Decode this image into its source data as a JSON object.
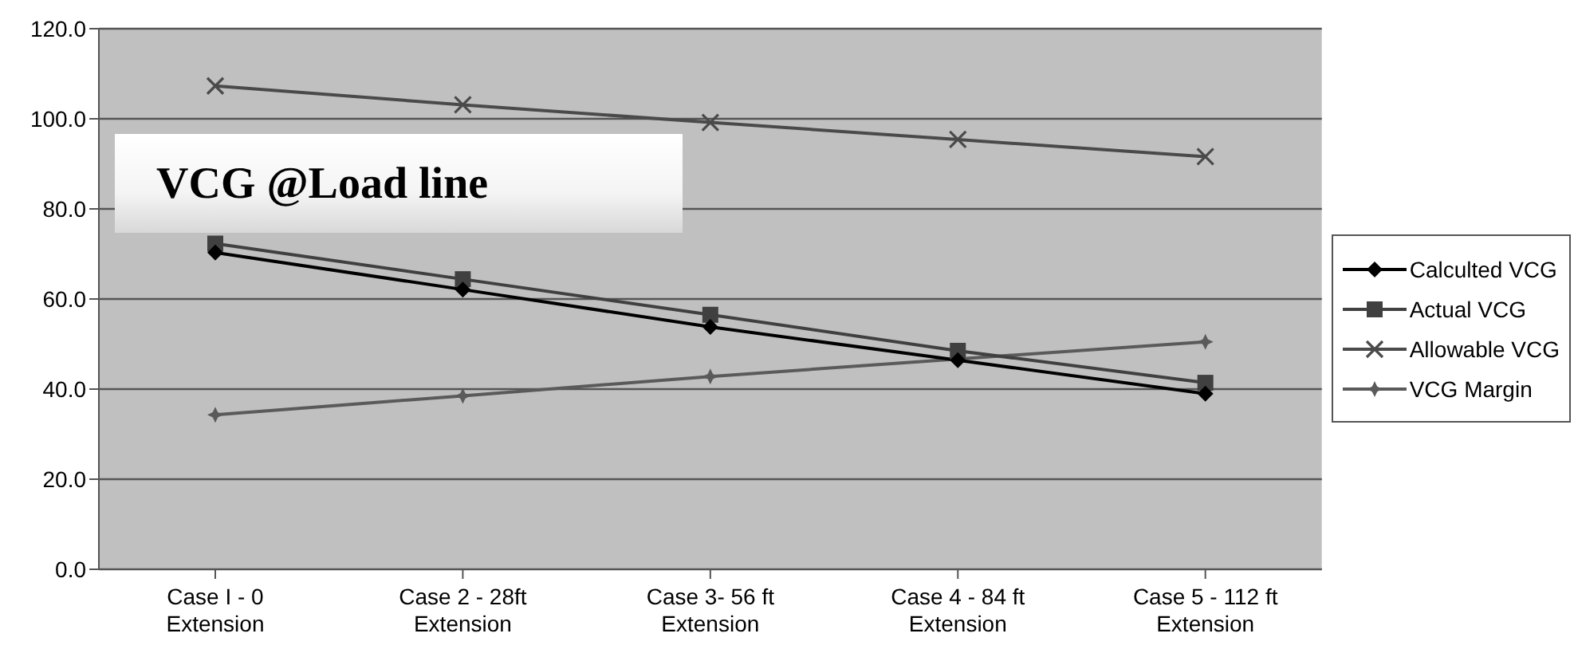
{
  "chart_data": {
    "type": "line",
    "title": "VCG @Load line",
    "categories": [
      "Case I - 0 Extension",
      "Case 2 - 28ft Extension",
      "Case 3- 56 ft Extension",
      "Case 4 - 84 ft Extension",
      "Case 5 - 112 ft Extension"
    ],
    "series": [
      {
        "name": "Calculted VCG",
        "color": "#000000",
        "marker": "diamond",
        "values": [
          70.3,
          62.1,
          53.8,
          46.4,
          39.0
        ]
      },
      {
        "name": "Actual VCG",
        "color": "#404040",
        "marker": "square",
        "values": [
          72.3,
          64.4,
          56.5,
          48.5,
          41.4
        ]
      },
      {
        "name": "Allowable VCG",
        "color": "#4a4a4a",
        "marker": "cross",
        "values": [
          107.3,
          103.1,
          99.2,
          95.4,
          91.6
        ]
      },
      {
        "name": "VCG Margin",
        "color": "#5a5a5a",
        "marker": "star",
        "values": [
          34.3,
          38.5,
          42.8,
          46.7,
          50.5
        ]
      }
    ],
    "ylim": [
      0,
      120
    ],
    "yticks": [
      {
        "value": 0,
        "label": "0.0"
      },
      {
        "value": 20,
        "label": "20.0"
      },
      {
        "value": 40,
        "label": "40.0"
      },
      {
        "value": 60,
        "label": "60.0"
      },
      {
        "value": 80,
        "label": "80.0"
      },
      {
        "value": 100,
        "label": "100.0"
      },
      {
        "value": 120,
        "label": "120.0"
      }
    ],
    "grid": "y",
    "legend": "right",
    "line_style": "solid"
  }
}
